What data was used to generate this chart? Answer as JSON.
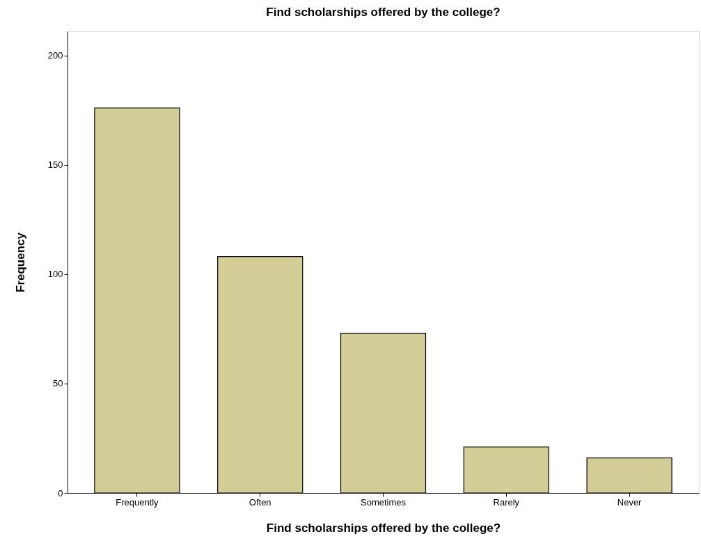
{
  "chart_data": {
    "type": "bar",
    "title": "Find scholarships offered by the college?",
    "xlabel": "Find scholarships offered by the college?",
    "ylabel": "Frequency",
    "categories": [
      "Frequently",
      "Often",
      "Sometimes",
      "Rarely",
      "Never"
    ],
    "values": [
      176,
      108,
      73,
      21,
      16
    ],
    "color": "#d3ce97",
    "ylim": [
      0,
      211
    ],
    "yticks": [
      0,
      50,
      100,
      150,
      200
    ],
    "grid": false
  }
}
